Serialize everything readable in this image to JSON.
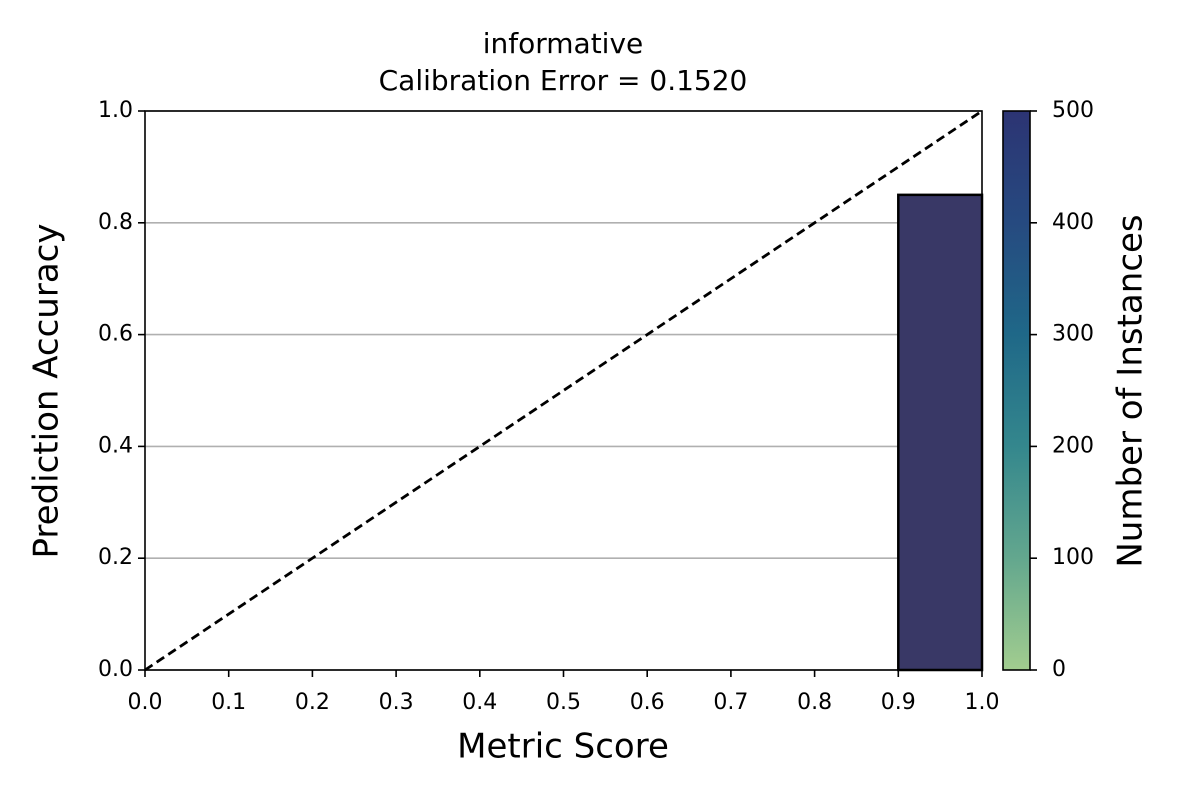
{
  "chart_data": {
    "type": "histogram",
    "title": "informative",
    "subtitle": "Calibration Error = 0.1520",
    "x_label": "Metric Score",
    "y_label": "Prediction Accuracy",
    "bins": [
      0,
      0.1,
      0.2,
      0.3,
      0.4,
      0.5,
      0.6,
      0.7,
      0.8,
      0.9,
      1.0
    ],
    "values": [
      null,
      null,
      null,
      null,
      null,
      null,
      null,
      null,
      null,
      0.85
    ],
    "color": "#393866",
    "xlim": [
      0,
      1
    ],
    "ylim": [
      0,
      1
    ],
    "xticks": [
      {
        "value": 0,
        "label": "0.0"
      },
      {
        "value": 0.1,
        "label": "0.1"
      },
      {
        "value": 0.2,
        "label": "0.2"
      },
      {
        "value": 0.3,
        "label": "0.3"
      },
      {
        "value": 0.4,
        "label": "0.4"
      },
      {
        "value": 0.5,
        "label": "0.5"
      },
      {
        "value": 0.6,
        "label": "0.6"
      },
      {
        "value": 0.7,
        "label": "0.7"
      },
      {
        "value": 0.8,
        "label": "0.8"
      },
      {
        "value": 0.9,
        "label": "0.9"
      },
      {
        "value": 1,
        "label": "1.0"
      }
    ],
    "yticks": [
      {
        "value": 0,
        "label": "0.0"
      },
      {
        "value": 0.2,
        "label": "0.2"
      },
      {
        "value": 0.4,
        "label": "0.4"
      },
      {
        "value": 0.6,
        "label": "0.6"
      },
      {
        "value": 0.8,
        "label": "0.8"
      },
      {
        "value": 1,
        "label": "1.0"
      }
    ],
    "grid": "y",
    "diagonal": true,
    "colorbar": {
      "label": "Number of Instances",
      "lim": [
        0,
        500
      ],
      "ticks": [
        0,
        100,
        200,
        300,
        400,
        500
      ],
      "colors": [
        "#a2cd8f",
        "#63a78e",
        "#34878d",
        "#1f6888",
        "#264a80",
        "#2c3473"
      ]
    }
  }
}
